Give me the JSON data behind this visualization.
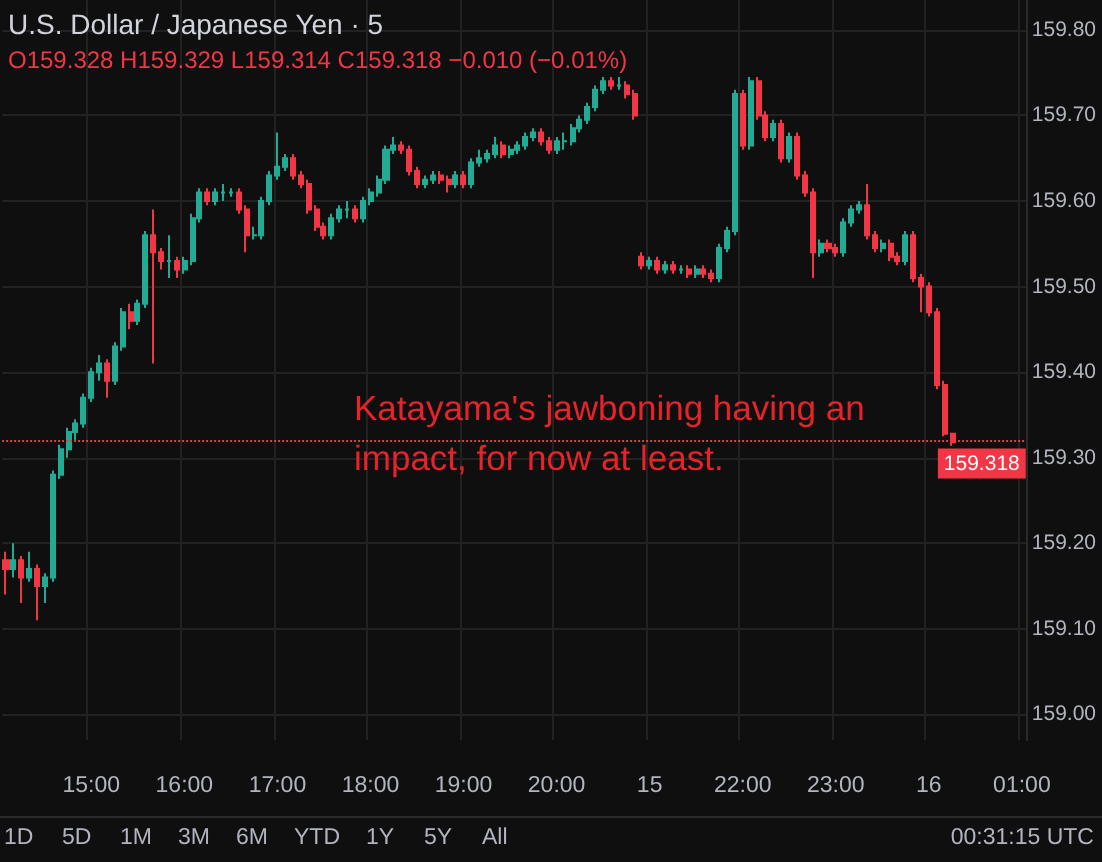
{
  "chart_data": {
    "type": "candlestick",
    "title": "U.S. Dollar / Japanese Yen · 5",
    "subtitle": "O159.328 H159.329 L159.314 C159.318 −0.010 (−0.01%)",
    "annotations": [
      "Katayama's jawboning having an impact, for now at least.",
      "1D",
      "5D",
      "1M",
      "3M",
      "6M",
      "YTD",
      "1Y",
      "5Y",
      "All",
      "00:31:15 UTC"
    ],
    "categories": [
      null,
      null,
      null,
      null,
      null,
      null,
      null,
      null,
      null,
      null,
      null,
      "15:00",
      null,
      null,
      null,
      null,
      null,
      null,
      null,
      null,
      null,
      null,
      null,
      "16:00",
      null,
      null,
      null,
      null,
      null,
      null,
      null,
      null,
      null,
      null,
      null,
      "17:00",
      null,
      null,
      null,
      null,
      null,
      null,
      null,
      null,
      null,
      null,
      null,
      "18:00",
      null,
      null,
      null,
      null,
      null,
      null,
      null,
      null,
      null,
      null,
      null,
      "19:00",
      null,
      null,
      null,
      null,
      null,
      null,
      null,
      null,
      null,
      null,
      null,
      "20:00",
      null,
      null,
      null,
      null,
      null,
      null,
      null,
      null,
      null,
      null,
      null,
      "15",
      null,
      null,
      null,
      null,
      null,
      null,
      null,
      null,
      null,
      null,
      null,
      "22:00",
      null,
      null,
      null,
      null,
      null,
      null,
      null,
      null,
      null,
      null,
      null,
      "23:00",
      null,
      null,
      null,
      null,
      null,
      null,
      null,
      null,
      null,
      null,
      null,
      "16",
      null,
      null,
      null,
      null,
      null,
      null,
      null,
      null,
      null,
      null,
      null,
      "01:00"
    ],
    "ohlc": [
      [
        159.18,
        159.19,
        159.14,
        159.17
      ],
      [
        159.17,
        159.2,
        159.16,
        159.18
      ],
      [
        159.18,
        159.185,
        159.13,
        159.16
      ],
      [
        159.16,
        159.19,
        159.155,
        159.17
      ],
      [
        159.17,
        159.175,
        159.11,
        159.15
      ],
      [
        159.15,
        159.165,
        159.13,
        159.16
      ],
      [
        159.16,
        159.285,
        159.155,
        159.28
      ],
      [
        159.28,
        159.315,
        159.275,
        159.31
      ],
      [
        159.31,
        159.335,
        159.3,
        159.33
      ],
      [
        159.33,
        159.345,
        159.32,
        159.34
      ],
      [
        159.34,
        159.375,
        159.335,
        159.37
      ],
      [
        159.37,
        159.405,
        159.365,
        159.4
      ],
      [
        159.4,
        159.42,
        159.39,
        159.41
      ],
      [
        159.41,
        159.415,
        159.37,
        159.39
      ],
      [
        159.39,
        159.435,
        159.385,
        159.43
      ],
      [
        159.43,
        159.475,
        159.425,
        159.47
      ],
      [
        159.47,
        159.48,
        159.45,
        159.46
      ],
      [
        159.46,
        159.485,
        159.455,
        159.48
      ],
      [
        159.48,
        159.565,
        159.475,
        159.56
      ],
      [
        159.56,
        159.59,
        159.41,
        159.54
      ],
      [
        159.54,
        159.545,
        159.52,
        159.53
      ],
      [
        159.53,
        159.56,
        159.51,
        159.53
      ],
      [
        159.53,
        159.535,
        159.51,
        159.52
      ],
      [
        159.52,
        159.535,
        159.515,
        159.53
      ],
      [
        159.53,
        159.585,
        159.525,
        159.58
      ],
      [
        159.58,
        159.615,
        159.575,
        159.61
      ],
      [
        159.61,
        159.615,
        159.595,
        159.6
      ],
      [
        159.6,
        159.615,
        159.595,
        159.61
      ],
      [
        159.61,
        159.62,
        159.6,
        159.61
      ],
      [
        159.61,
        159.615,
        159.605,
        159.61
      ],
      [
        159.61,
        159.615,
        159.585,
        159.59
      ],
      [
        159.59,
        159.595,
        159.54,
        159.56
      ],
      [
        159.56,
        159.57,
        159.555,
        159.56
      ],
      [
        159.56,
        159.605,
        159.555,
        159.6
      ],
      [
        159.6,
        159.635,
        159.595,
        159.63
      ],
      [
        159.63,
        159.68,
        159.625,
        159.64
      ],
      [
        159.64,
        159.655,
        159.635,
        159.65
      ],
      [
        159.65,
        159.655,
        159.625,
        159.63
      ],
      [
        159.63,
        159.635,
        159.615,
        159.62
      ],
      [
        159.62,
        159.625,
        159.585,
        159.59
      ],
      [
        159.59,
        159.595,
        159.565,
        159.57
      ],
      [
        159.57,
        159.575,
        159.555,
        159.56
      ],
      [
        159.56,
        159.585,
        159.555,
        159.58
      ],
      [
        159.58,
        159.595,
        159.575,
        159.59
      ],
      [
        159.59,
        159.6,
        159.58,
        159.59
      ],
      [
        159.59,
        159.595,
        159.575,
        159.58
      ],
      [
        159.58,
        159.605,
        159.575,
        159.6
      ],
      [
        159.6,
        159.615,
        159.595,
        159.61
      ],
      [
        159.61,
        159.63,
        159.605,
        159.625
      ],
      [
        159.625,
        159.665,
        159.62,
        159.66
      ],
      [
        159.66,
        159.675,
        159.655,
        159.665
      ],
      [
        159.665,
        159.67,
        159.655,
        159.66
      ],
      [
        159.66,
        159.665,
        159.63,
        159.635
      ],
      [
        159.635,
        159.64,
        159.615,
        159.62
      ],
      [
        159.62,
        159.63,
        159.615,
        159.625
      ],
      [
        159.625,
        159.635,
        159.62,
        159.63
      ],
      [
        159.63,
        159.635,
        159.62,
        159.625
      ],
      [
        159.625,
        159.63,
        159.61,
        159.62
      ],
      [
        159.62,
        159.635,
        159.615,
        159.63
      ],
      [
        159.63,
        159.635,
        159.615,
        159.62
      ],
      [
        159.62,
        159.65,
        159.615,
        159.645
      ],
      [
        159.645,
        159.66,
        159.64,
        159.65
      ],
      [
        159.65,
        159.66,
        159.645,
        159.655
      ],
      [
        159.655,
        159.675,
        159.65,
        159.665
      ],
      [
        159.665,
        159.67,
        159.65,
        159.655
      ],
      [
        159.655,
        159.665,
        159.65,
        159.66
      ],
      [
        159.66,
        159.67,
        159.655,
        159.665
      ],
      [
        159.665,
        159.68,
        159.66,
        159.675
      ],
      [
        159.675,
        159.685,
        159.67,
        159.68
      ],
      [
        159.68,
        159.685,
        159.665,
        159.67
      ],
      [
        159.67,
        159.675,
        159.655,
        159.66
      ],
      [
        159.66,
        159.675,
        159.655,
        159.67
      ],
      [
        159.67,
        159.68,
        159.66,
        159.67
      ],
      [
        159.67,
        159.69,
        159.665,
        159.685
      ],
      [
        159.685,
        159.7,
        159.68,
        159.695
      ],
      [
        159.695,
        159.715,
        159.69,
        159.71
      ],
      [
        159.71,
        159.735,
        159.705,
        159.73
      ],
      [
        159.73,
        159.745,
        159.725,
        159.74
      ],
      [
        159.74,
        159.745,
        159.73,
        159.735
      ],
      [
        159.735,
        159.745,
        159.73,
        159.735
      ],
      [
        159.735,
        159.74,
        159.72,
        159.725
      ],
      [
        159.725,
        159.73,
        159.695,
        159.7
      ],
      [
        159.535,
        159.54,
        159.52,
        159.525
      ],
      [
        159.525,
        159.535,
        159.52,
        159.53
      ],
      [
        159.53,
        159.535,
        159.515,
        159.52
      ],
      [
        159.52,
        159.53,
        159.515,
        159.525
      ],
      [
        159.525,
        159.53,
        159.515,
        159.52
      ],
      [
        159.52,
        159.525,
        159.515,
        159.52
      ],
      [
        159.52,
        159.525,
        159.51,
        159.515
      ],
      [
        159.515,
        159.525,
        159.51,
        159.52
      ],
      [
        159.52,
        159.525,
        159.51,
        159.515
      ],
      [
        159.515,
        159.52,
        159.505,
        159.51
      ],
      [
        159.51,
        159.55,
        159.505,
        159.545
      ],
      [
        159.545,
        159.57,
        159.54,
        159.565
      ],
      [
        159.565,
        159.73,
        159.56,
        159.725
      ],
      [
        159.725,
        159.73,
        159.66,
        159.665
      ],
      [
        159.665,
        159.745,
        159.66,
        159.74
      ],
      [
        159.74,
        159.745,
        159.695,
        159.7
      ],
      [
        159.7,
        159.705,
        159.67,
        159.675
      ],
      [
        159.675,
        159.695,
        159.67,
        159.69
      ],
      [
        159.69,
        159.695,
        159.645,
        159.65
      ],
      [
        159.65,
        159.68,
        159.645,
        159.675
      ],
      [
        159.675,
        159.68,
        159.625,
        159.63
      ],
      [
        159.63,
        159.635,
        159.605,
        159.61
      ],
      [
        159.61,
        159.615,
        159.51,
        159.54
      ],
      [
        159.54,
        159.555,
        159.535,
        159.55
      ],
      [
        159.55,
        159.555,
        159.54,
        159.545
      ],
      [
        159.545,
        159.55,
        159.535,
        159.54
      ],
      [
        159.54,
        159.58,
        159.535,
        159.575
      ],
      [
        159.575,
        159.595,
        159.57,
        159.59
      ],
      [
        159.59,
        159.6,
        159.585,
        159.595
      ],
      [
        159.595,
        159.62,
        159.555,
        159.56
      ],
      [
        159.56,
        159.565,
        159.54,
        159.545
      ],
      [
        159.545,
        159.555,
        159.54,
        159.55
      ],
      [
        159.55,
        159.555,
        159.53,
        159.535
      ],
      [
        159.535,
        159.54,
        159.525,
        159.53
      ],
      [
        159.53,
        159.565,
        159.525,
        159.56
      ],
      [
        159.56,
        159.565,
        159.505,
        159.51
      ],
      [
        159.51,
        159.515,
        159.47,
        159.5
      ],
      [
        159.5,
        159.505,
        159.465,
        159.47
      ],
      [
        159.47,
        159.475,
        159.38,
        159.385
      ],
      [
        159.385,
        159.39,
        159.325,
        159.328
      ],
      [
        159.328,
        159.329,
        159.314,
        159.318
      ],
      null,
      null,
      null,
      null,
      null,
      null,
      null,
      null,
      null
    ],
    "ylim": [
      158.97,
      159.835
    ],
    "yticks": [
      {
        "value": 159.0,
        "label": "159.00"
      },
      {
        "value": 159.1,
        "label": "159.10"
      },
      {
        "value": 159.2,
        "label": "159.20"
      },
      {
        "value": 159.3,
        "label": "159.30"
      },
      {
        "value": 159.4,
        "label": "159.40"
      },
      {
        "value": 159.5,
        "label": "159.50"
      },
      {
        "value": 159.6,
        "label": "159.60"
      },
      {
        "value": 159.7,
        "label": "159.70"
      },
      {
        "value": 159.8,
        "label": "159.80"
      }
    ],
    "ref_lines": [
      {
        "axis": "y",
        "value": 159.318,
        "label": "159.318",
        "color": "#f23645",
        "line_style": "dotted"
      }
    ],
    "grid": true
  }
}
